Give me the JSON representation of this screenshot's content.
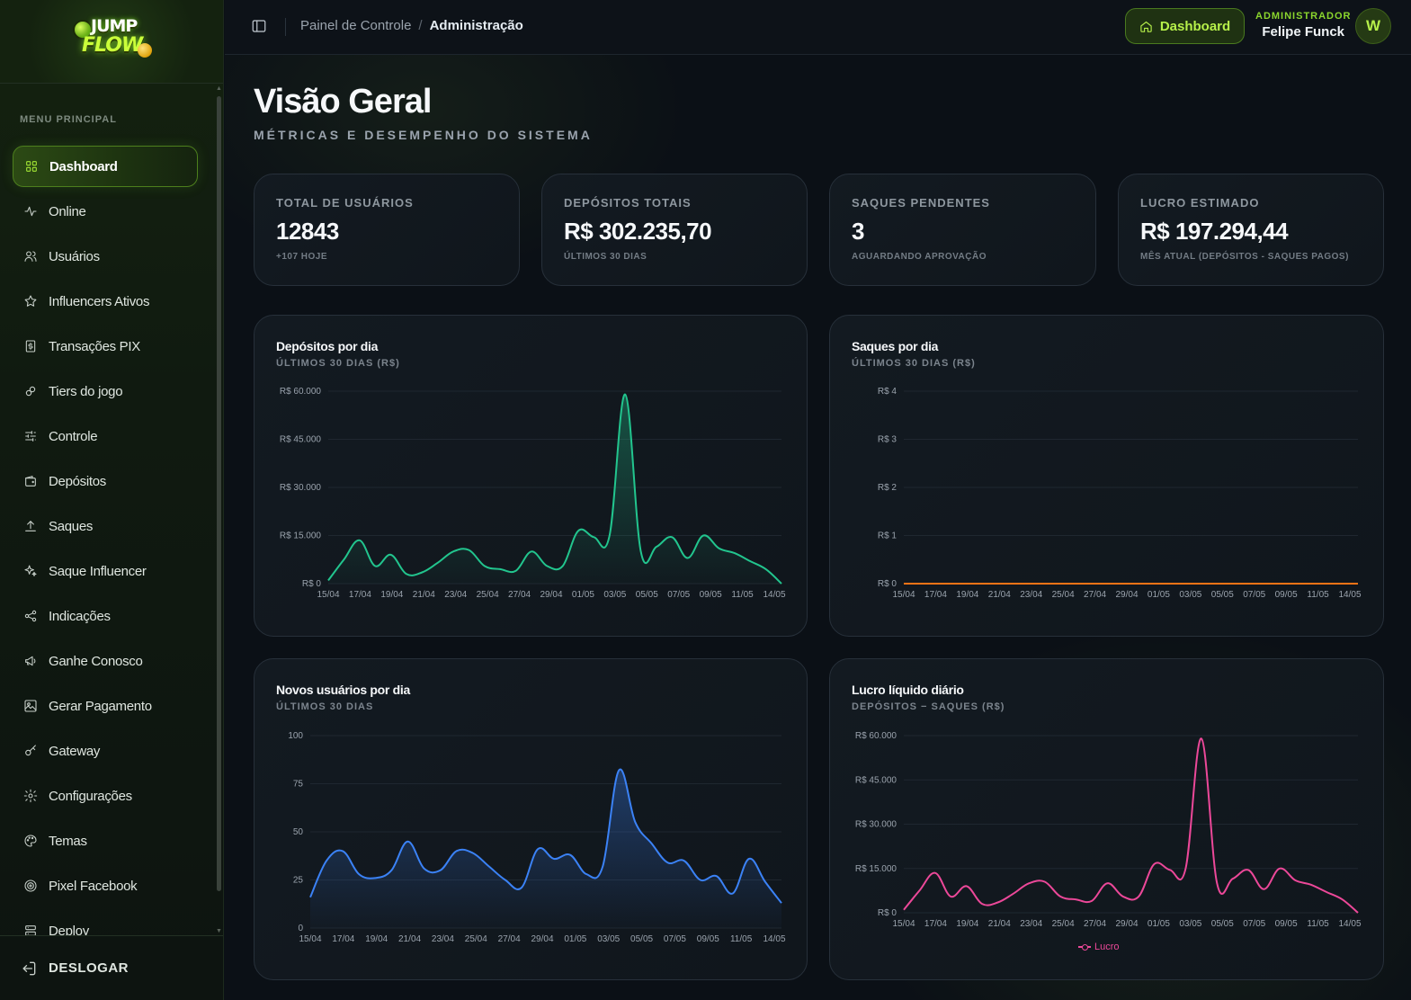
{
  "logo": {
    "line1": "JUMP",
    "line2": "FLOW"
  },
  "sidebar": {
    "menu_title": "MENU PRINCIPAL",
    "items": [
      {
        "label": "Dashboard",
        "icon": "grid-icon"
      },
      {
        "label": "Online",
        "icon": "activity-icon"
      },
      {
        "label": "Usuários",
        "icon": "users-icon"
      },
      {
        "label": "Influencers Ativos",
        "icon": "star-icon"
      },
      {
        "label": "Transações PIX",
        "icon": "receipt-icon"
      },
      {
        "label": "Tiers do jogo",
        "icon": "link-icon"
      },
      {
        "label": "Controle",
        "icon": "sliders-icon"
      },
      {
        "label": "Depósitos",
        "icon": "wallet-icon"
      },
      {
        "label": "Saques",
        "icon": "upload-icon"
      },
      {
        "label": "Saque Influencer",
        "icon": "sparkle-icon"
      },
      {
        "label": "Indicações",
        "icon": "share-icon"
      },
      {
        "label": "Ganhe Conosco",
        "icon": "megaphone-icon"
      },
      {
        "label": "Gerar Pagamento",
        "icon": "image-dollar-icon"
      },
      {
        "label": "Gateway",
        "icon": "key-icon"
      },
      {
        "label": "Configurações",
        "icon": "gear-icon"
      },
      {
        "label": "Temas",
        "icon": "palette-icon"
      },
      {
        "label": "Pixel Facebook",
        "icon": "target-icon"
      },
      {
        "label": "Deploy",
        "icon": "server-icon"
      }
    ],
    "logout_label": "DESLOGAR"
  },
  "header": {
    "breadcrumb_root": "Painel de Controle",
    "breadcrumb_sep": "/",
    "breadcrumb_current": "Administração",
    "dashboard_button": "Dashboard",
    "user_role": "ADMINISTRADOR",
    "user_name": "Felipe Funck",
    "avatar_initial": "W"
  },
  "page": {
    "title": "Visão Geral",
    "subtitle": "MÉTRICAS E DESEMPENHO DO SISTEMA"
  },
  "stats": [
    {
      "label": "TOTAL DE USUÁRIOS",
      "value": "12843",
      "note": "+107 HOJE"
    },
    {
      "label": "DEPÓSITOS TOTAIS",
      "value": "R$ 302.235,70",
      "note": "ÚLTIMOS 30 DIAS"
    },
    {
      "label": "SAQUES PENDENTES",
      "value": "3",
      "note": "AGUARDANDO APROVAÇÃO"
    },
    {
      "label": "LUCRO ESTIMADO",
      "value": "R$ 197.294,44",
      "note": "MÊS ATUAL (DEPÓSITOS - SAQUES PAGOS)"
    }
  ],
  "chart_data": [
    {
      "type": "area",
      "title": "Depósitos por dia",
      "subtitle": "ÚLTIMOS 30 DIAS (R$)",
      "color": "#22c58e",
      "x_ticks": [
        "15/04",
        "17/04",
        "19/04",
        "21/04",
        "23/04",
        "25/04",
        "27/04",
        "29/04",
        "01/05",
        "03/05",
        "05/05",
        "07/05",
        "09/05",
        "11/05",
        "14/05"
      ],
      "y_ticks": [
        "R$ 0",
        "R$ 15.000",
        "R$ 30.000",
        "R$ 45.000",
        "R$ 60.000"
      ],
      "ylim": [
        0,
        60000
      ],
      "values": [
        1000,
        7500,
        13500,
        5500,
        9000,
        3000,
        3500,
        6500,
        10000,
        10500,
        5500,
        4500,
        4000,
        10000,
        5500,
        5500,
        16500,
        14500,
        15000,
        59000,
        10000,
        11500,
        14500,
        8000,
        15000,
        11000,
        9500,
        7000,
        4500,
        0
      ]
    },
    {
      "type": "line",
      "title": "Saques por dia",
      "subtitle": "ÚLTIMOS 30 DIAS (R$)",
      "color": "#f97316",
      "x_ticks": [
        "15/04",
        "17/04",
        "19/04",
        "21/04",
        "23/04",
        "25/04",
        "27/04",
        "29/04",
        "01/05",
        "03/05",
        "05/05",
        "07/05",
        "09/05",
        "11/05",
        "14/05"
      ],
      "y_ticks": [
        "R$ 0",
        "R$ 1",
        "R$ 2",
        "R$ 3",
        "R$ 4"
      ],
      "ylim": [
        0,
        4
      ],
      "values": [
        0,
        0,
        0,
        0,
        0,
        0,
        0,
        0,
        0,
        0,
        0,
        0,
        0,
        0,
        0,
        0,
        0,
        0,
        0,
        0,
        0,
        0,
        0,
        0,
        0,
        0,
        0,
        0,
        0,
        0
      ]
    },
    {
      "type": "area",
      "title": "Novos usuários por dia",
      "subtitle": "ÚLTIMOS 30 DIAS",
      "color": "#3b82f6",
      "x_ticks": [
        "15/04",
        "17/04",
        "19/04",
        "21/04",
        "23/04",
        "25/04",
        "27/04",
        "29/04",
        "01/05",
        "03/05",
        "05/05",
        "07/05",
        "09/05",
        "11/05",
        "14/05"
      ],
      "y_ticks": [
        "0",
        "25",
        "50",
        "75",
        "100"
      ],
      "ylim": [
        0,
        100
      ],
      "values": [
        16,
        35,
        40,
        28,
        26,
        30,
        45,
        31,
        30,
        40,
        39,
        32,
        25,
        21,
        41,
        36,
        38,
        28,
        32,
        82,
        55,
        44,
        34,
        35,
        25,
        27,
        18,
        36,
        24,
        13
      ]
    },
    {
      "type": "line",
      "title": "Lucro líquido diário",
      "subtitle": "DEPÓSITOS − SAQUES (R$)",
      "color": "#ec4899",
      "legend": "Lucro",
      "x_ticks": [
        "15/04",
        "17/04",
        "19/04",
        "21/04",
        "23/04",
        "25/04",
        "27/04",
        "29/04",
        "01/05",
        "03/05",
        "05/05",
        "07/05",
        "09/05",
        "11/05",
        "14/05"
      ],
      "y_ticks": [
        "R$ 0",
        "R$ 15.000",
        "R$ 30.000",
        "R$ 45.000",
        "R$ 60.000"
      ],
      "ylim": [
        0,
        60000
      ],
      "values": [
        1000,
        7500,
        13500,
        5500,
        9000,
        3000,
        3500,
        6500,
        10000,
        10500,
        5500,
        4500,
        4000,
        10000,
        5500,
        5500,
        16500,
        14500,
        15000,
        59000,
        10000,
        11500,
        14500,
        8000,
        15000,
        11000,
        9500,
        7000,
        4500,
        0
      ]
    }
  ]
}
